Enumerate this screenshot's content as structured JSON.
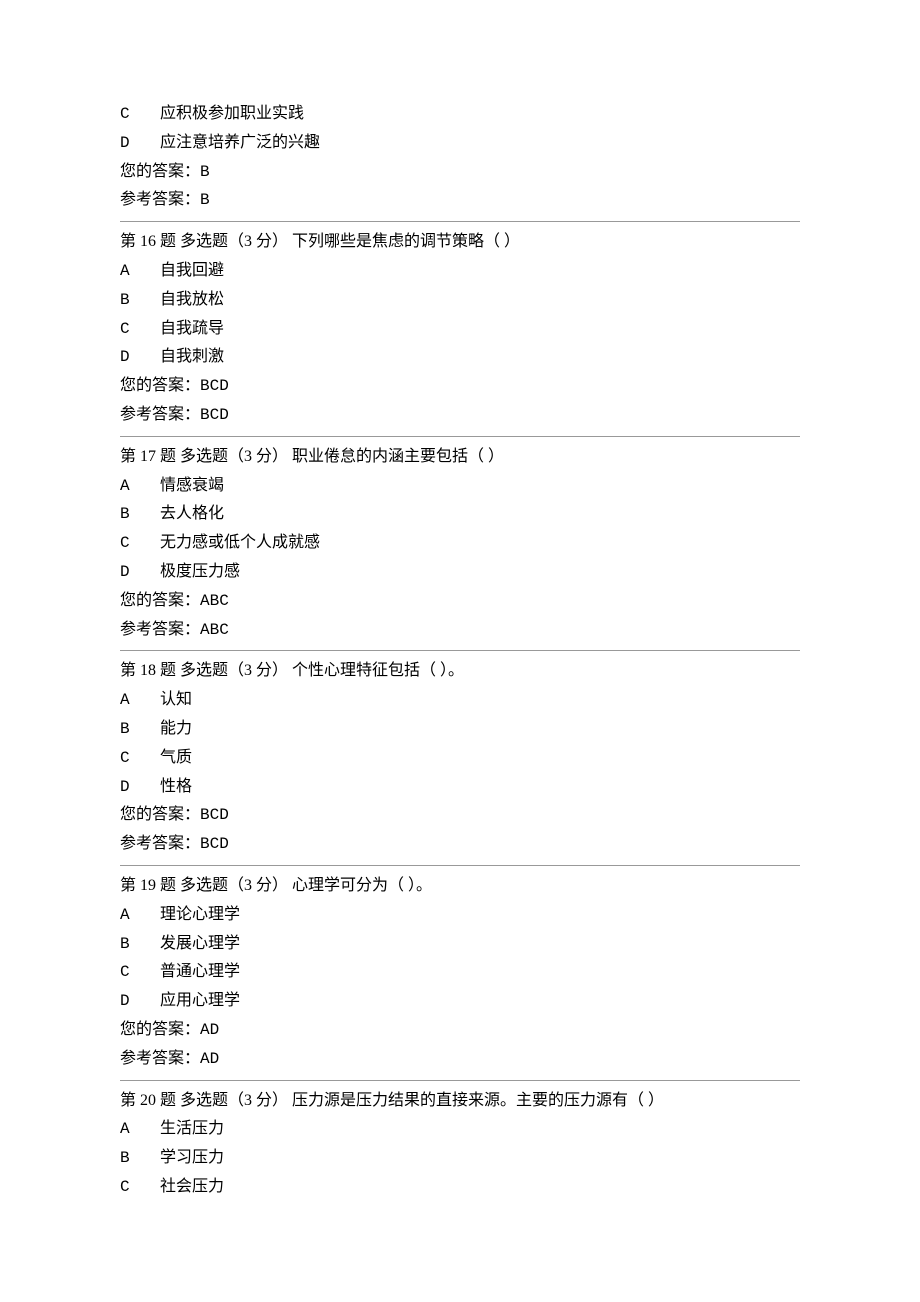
{
  "top": {
    "opt_c_letter": "C",
    "opt_c_text": "应积极参加职业实践",
    "opt_d_letter": "D",
    "opt_d_text": "应注意培养广泛的兴趣",
    "your_answer_label": "您的答案：",
    "your_answer_value": "B",
    "ref_answer_label": "参考答案：",
    "ref_answer_value": "B"
  },
  "q16": {
    "title": "第 16 题 多选题（3 分）  下列哪些是焦虑的调节策略（ ）",
    "a_letter": "A",
    "a_text": "自我回避",
    "b_letter": "B",
    "b_text": "自我放松",
    "c_letter": "C",
    "c_text": "自我疏导",
    "d_letter": "D",
    "d_text": "自我刺激",
    "your_answer_label": "您的答案：",
    "your_answer_value": "BCD",
    "ref_answer_label": "参考答案：",
    "ref_answer_value": "BCD"
  },
  "q17": {
    "title": "第 17 题 多选题（3 分）  职业倦怠的内涵主要包括（ ）",
    "a_letter": "A",
    "a_text": "情感衰竭",
    "b_letter": "B",
    "b_text": "去人格化",
    "c_letter": "C",
    "c_text": "无力感或低个人成就感",
    "d_letter": "D",
    "d_text": "极度压力感",
    "your_answer_label": "您的答案：",
    "your_answer_value": "ABC",
    "ref_answer_label": "参考答案：",
    "ref_answer_value": "ABC"
  },
  "q18": {
    "title": "第 18 题 多选题（3 分）  个性心理特征包括（ ）。",
    "a_letter": "A",
    "a_text": "认知",
    "b_letter": "B",
    "b_text": "能力",
    "c_letter": "C",
    "c_text": "气质",
    "d_letter": "D",
    "d_text": "性格",
    "your_answer_label": "您的答案：",
    "your_answer_value": "BCD",
    "ref_answer_label": "参考答案：",
    "ref_answer_value": "BCD"
  },
  "q19": {
    "title": "第 19 题 多选题（3 分）  心理学可分为（ ）。",
    "a_letter": "A",
    "a_text": "理论心理学",
    "b_letter": "B",
    "b_text": "发展心理学",
    "c_letter": "C",
    "c_text": "普通心理学",
    "d_letter": "D",
    "d_text": "应用心理学",
    "your_answer_label": "您的答案：",
    "your_answer_value": "AD",
    "ref_answer_label": "参考答案：",
    "ref_answer_value": "AD"
  },
  "q20": {
    "title": "第 20 题 多选题（3 分）  压力源是压力结果的直接来源。主要的压力源有（ ）",
    "a_letter": "A",
    "a_text": "生活压力",
    "b_letter": "B",
    "b_text": "学习压力",
    "c_letter": "C",
    "c_text": "社会压力"
  }
}
